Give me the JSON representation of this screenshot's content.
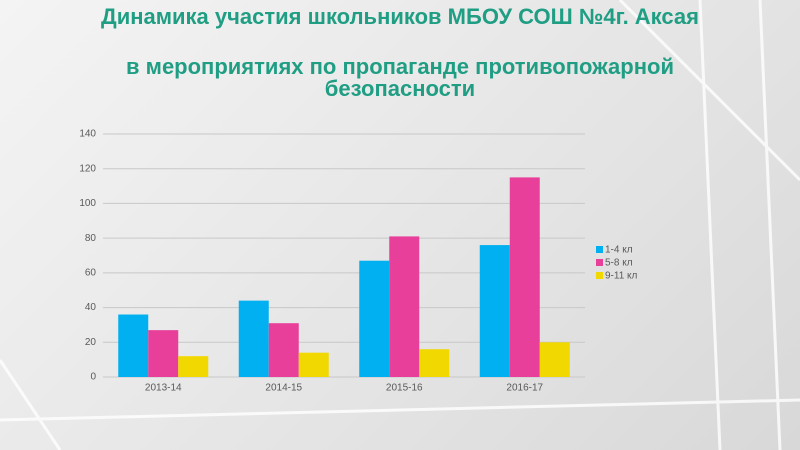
{
  "chart_data": {
    "type": "bar",
    "title": [
      "Динамика участия школьников МБОУ СОШ №4г. Аксая",
      "в мероприятиях по пропаганде противопожарной безопасности"
    ],
    "categories": [
      "2013-14",
      "2014-15",
      "2015-16",
      "2016-17"
    ],
    "series": [
      {
        "name": "1-4 кл",
        "color": "#00b0f0",
        "values": [
          36,
          44,
          67,
          76
        ]
      },
      {
        "name": "5-8 кл",
        "color": "#e8409a",
        "values": [
          27,
          31,
          81,
          115
        ]
      },
      {
        "name": "9-11 кл",
        "color": "#f0d800",
        "values": [
          12,
          14,
          16,
          20
        ]
      }
    ],
    "ylim": [
      0,
      140
    ],
    "yticks": [
      0,
      20,
      40,
      60,
      80,
      100,
      120,
      140
    ],
    "grid": true,
    "legend": "right"
  }
}
